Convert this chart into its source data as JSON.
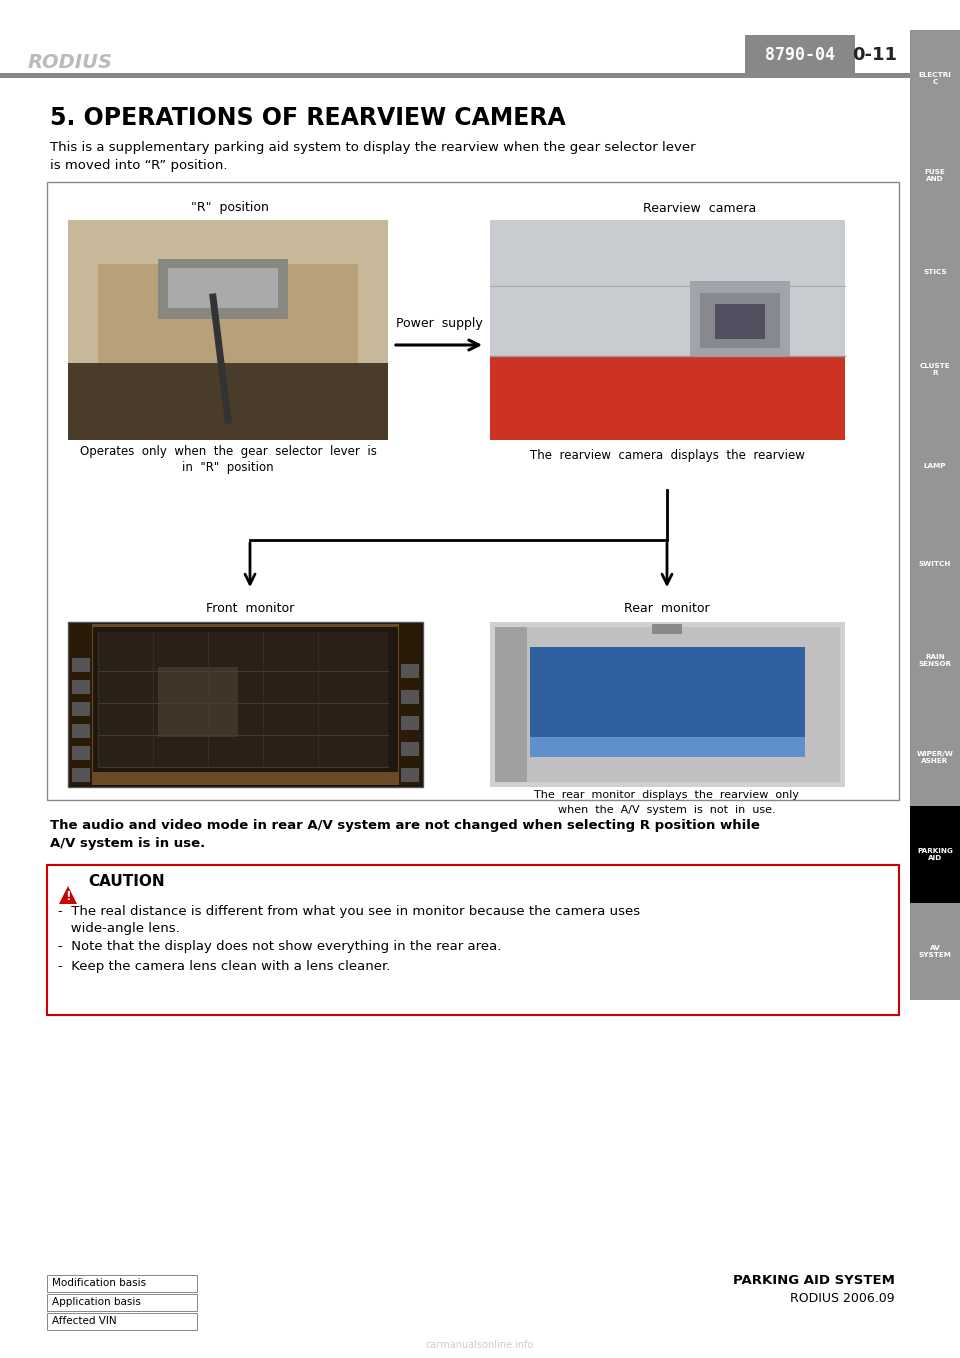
{
  "page_title": "5. OPERATIONS OF REARVIEW CAMERA",
  "subtitle_line1": "This is a supplementary parking aid system to display the rearview when the gear selector lever",
  "subtitle_line2": "is moved into “R” position.",
  "header_left": "RODIUS",
  "header_code": "8790-04",
  "header_page": "0-11",
  "sidebar_labels": [
    "ELECTRI\nC",
    "FUSE\nAND",
    "STICS",
    "CLUSTE\nR",
    "LAMP",
    "SWITCH",
    "RAIN\nSENSOR",
    "WIPER/W\nASHER",
    "PARKING\nAID",
    "AV\nSYSTEM"
  ],
  "sidebar_active_index": 8,
  "sidebar_bg": "#959595",
  "sidebar_active_bg": "#000000",
  "label_r_position": "\"R\"  position",
  "label_rearview": "Rearview  camera",
  "label_power_supply": "Power  supply",
  "label_caption_left1": "Operates  only  when  the  gear  selector  lever  is",
  "label_caption_left2": "in  \"R\"  position",
  "label_caption_right": "The  rearview  camera  displays  the  rearview",
  "label_front_monitor": "Front  monitor",
  "label_rear_monitor": "Rear  monitor",
  "label_rear_caption1": "The  rear  monitor  displays  the  rearview  only",
  "label_rear_caption2": "when  the  A/V  system  is  not  in  use.",
  "bottom_text1": "The audio and video mode in rear A/V system are not changed when selecting R position while",
  "bottom_text2": "A/V system is in use.",
  "caution_title": "CAUTION",
  "caution_line1": "The real distance is different from what you see in monitor because the camera uses",
  "caution_line1b": "   wide-angle lens.",
  "caution_line2": "Note that the display does not show everything in the rear area.",
  "caution_line3": "Keep the camera lens clean with a lens cleaner.",
  "caution_border": "#cc0000",
  "footer_left_labels": [
    "Modification basis",
    "Application basis",
    "Affected VIN"
  ],
  "footer_right1": "PARKING AID SYSTEM",
  "footer_right2": "RODIUS 2006.09",
  "bg_color": "#ffffff",
  "text_color": "#000000",
  "diagram_border": "#888888",
  "header_gray": "#aaaaaa",
  "header_box_gray": "#888888"
}
